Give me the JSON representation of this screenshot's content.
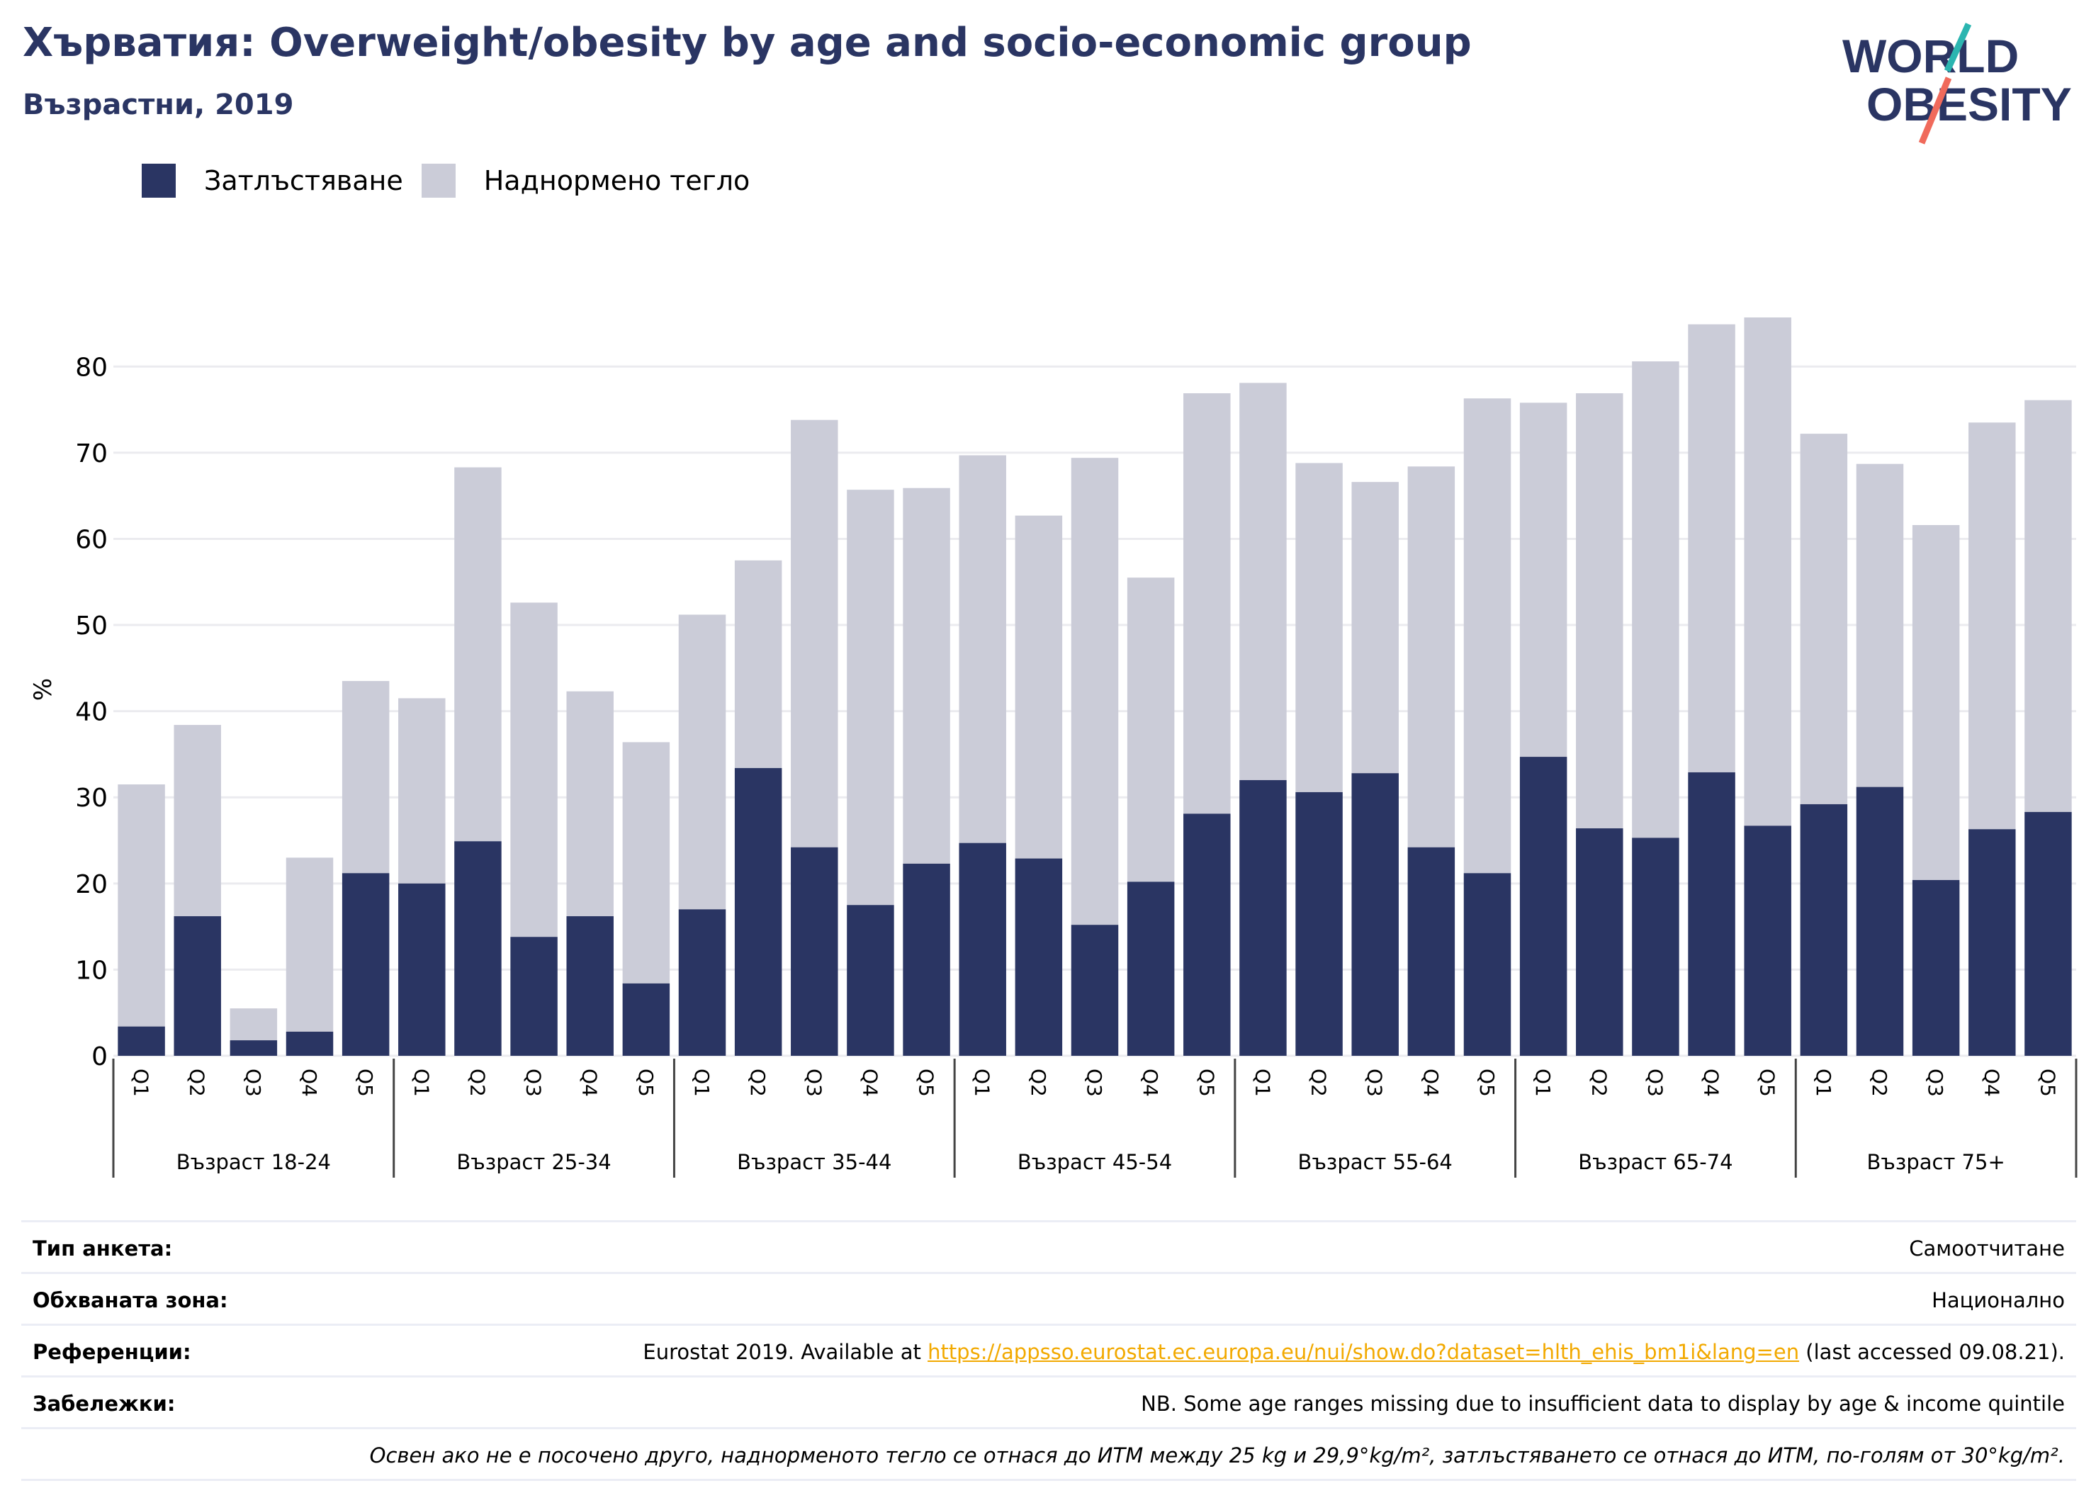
{
  "header": {
    "title": "Хърватия: Overweight/obesity by age and socio-economic group",
    "subtitle": "Възрастни, 2019"
  },
  "logo": {
    "line1": "WORLD",
    "line2": "OBESITY"
  },
  "colors": {
    "obesity": "#2a3563",
    "overweight": "#cbccd8",
    "title": "#2a3563",
    "link": "#f2a900",
    "logo_teal": "#2bb5b0",
    "logo_coral": "#f06a5b"
  },
  "legend": {
    "obesity_label": "Затлъстяване",
    "overweight_label": "Наднормено тегло"
  },
  "chart_data": {
    "type": "bar",
    "stacked": true,
    "ylabel": "%",
    "ylim": [
      0,
      88
    ],
    "yticks": [
      0,
      10,
      20,
      30,
      40,
      50,
      60,
      70,
      80
    ],
    "grid": true,
    "legend_position": "top-left",
    "groups": [
      {
        "label": "Възраст 18-24",
        "categories": [
          "Q1",
          "Q2",
          "Q3",
          "Q4",
          "Q5"
        ]
      },
      {
        "label": "Възраст 25-34",
        "categories": [
          "Q1",
          "Q2",
          "Q3",
          "Q4",
          "Q5"
        ]
      },
      {
        "label": "Възраст 35-44",
        "categories": [
          "Q1",
          "Q2",
          "Q3",
          "Q4",
          "Q5"
        ]
      },
      {
        "label": "Възраст 45-54",
        "categories": [
          "Q1",
          "Q2",
          "Q3",
          "Q4",
          "Q5"
        ]
      },
      {
        "label": "Възраст 55-64",
        "categories": [
          "Q1",
          "Q2",
          "Q3",
          "Q4",
          "Q5"
        ]
      },
      {
        "label": "Възраст 65-74",
        "categories": [
          "Q1",
          "Q2",
          "Q3",
          "Q4",
          "Q5"
        ]
      },
      {
        "label": "Възраст 75+",
        "categories": [
          "Q1",
          "Q2",
          "Q3",
          "Q4",
          "Q5"
        ]
      }
    ],
    "series": [
      {
        "name": "Затлъстяване",
        "values": [
          3.4,
          16.2,
          1.8,
          2.8,
          21.2,
          20.0,
          24.9,
          13.8,
          16.2,
          8.4,
          17.0,
          33.4,
          24.2,
          17.5,
          22.3,
          24.7,
          22.9,
          15.2,
          20.2,
          28.1,
          32.0,
          30.6,
          32.8,
          24.2,
          21.2,
          34.7,
          26.4,
          25.3,
          32.9,
          26.7,
          29.2,
          31.2,
          20.4,
          26.3,
          28.3
        ]
      },
      {
        "name": "Наднормено тегло",
        "values": [
          28.1,
          22.2,
          3.7,
          20.2,
          22.3,
          21.5,
          43.4,
          38.8,
          26.1,
          28.0,
          34.2,
          24.1,
          49.6,
          48.2,
          43.6,
          45.0,
          39.8,
          54.2,
          35.3,
          48.8,
          46.1,
          38.2,
          33.8,
          44.2,
          55.1,
          41.1,
          50.5,
          55.3,
          52.0,
          59.0,
          43.0,
          37.5,
          41.2,
          47.2,
          47.8
        ]
      }
    ]
  },
  "info": {
    "survey_label": "Тип анкета:",
    "survey_value": "Самоотчитане",
    "coverage_label": "Обхваната зона:",
    "coverage_value": "Национално",
    "references_label": "Референции:",
    "references_prefix": "Eurostat 2019. Available at ",
    "references_link": "https://appsso.eurostat.ec.europa.eu/nui/show.do?dataset=hlth_ehis_bm1i&lang=en",
    "references_suffix": " (last accessed 09.08.21).",
    "notes_label": "Забележки:",
    "notes_value": "NB. Some age ranges missing due to insufficient data to display by age & income quintile",
    "footnote": "Освен ако не е посочено друго, наднорменото тегло се отнася до ИТМ между 25 kg и 29,9°kg/m², затлъстяването се отнася до ИТМ, по-голям от 30°kg/m²."
  }
}
